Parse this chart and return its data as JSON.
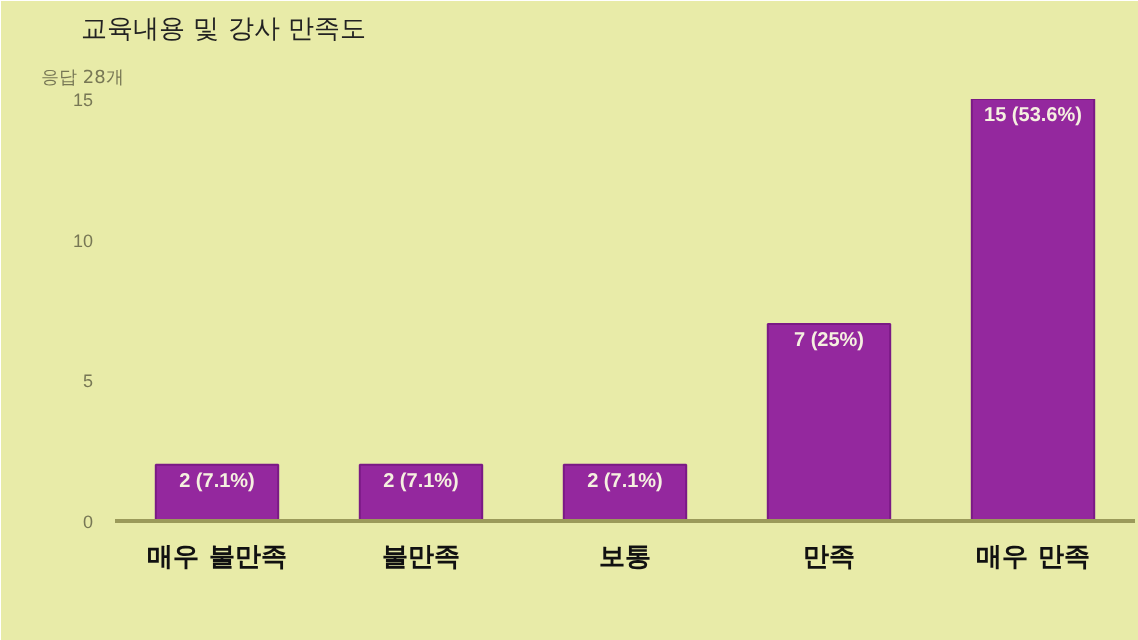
{
  "chart_data": {
    "type": "bar",
    "title": "교육내용 및 강사 만족도",
    "subtitle": "응답 28개",
    "categories": [
      "매우 불만족",
      "불만족",
      "보통",
      "만족",
      "매우 만족"
    ],
    "values": [
      2,
      2,
      2,
      7,
      15
    ],
    "color": "#94289e",
    "value_labels": [
      "2 (7.1%)",
      "2 (7.1%)",
      "2 (7.1%)",
      "7 (25%)",
      "15 (53.6%)"
    ],
    "ylim": [
      0,
      15
    ],
    "yticks": [
      0,
      5,
      10,
      15
    ],
    "grid": false
  }
}
